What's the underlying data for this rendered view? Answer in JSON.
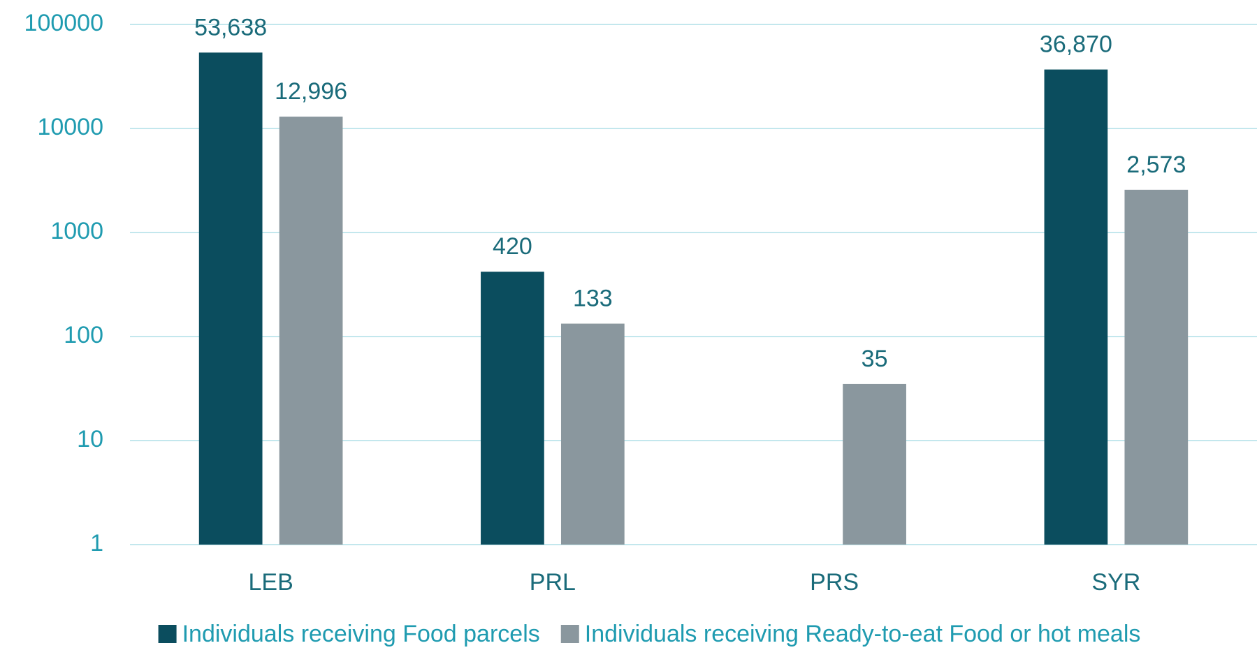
{
  "chart_data": {
    "type": "bar",
    "categories": [
      "LEB",
      "PRL",
      "PRS",
      "SYR"
    ],
    "series": [
      {
        "name": "Individuals receiving Food parcels",
        "color": "#0b4d5e",
        "values": [
          53638,
          420,
          null,
          36870
        ],
        "value_labels": [
          "53,638",
          "420",
          null,
          "36,870"
        ]
      },
      {
        "name": "Individuals receiving Ready-to-eat Food or hot meals",
        "color": "#8a979e",
        "values": [
          12996,
          133,
          35,
          2573
        ],
        "value_labels": [
          "12,996",
          "133",
          "35",
          "2,573"
        ]
      }
    ],
    "ylim": [
      1,
      100000
    ],
    "yticks": [
      1,
      10,
      100,
      1000,
      10000,
      100000
    ],
    "log_scale": true,
    "grid": true,
    "legend": "bottom"
  }
}
